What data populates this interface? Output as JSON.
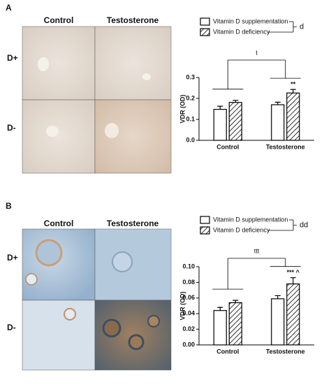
{
  "panels": [
    {
      "label": "A",
      "columns": [
        "Control",
        "Testosterone"
      ],
      "rows": [
        "D+",
        "D-"
      ]
    },
    {
      "label": "B",
      "columns": [
        "Control",
        "Testosterone"
      ],
      "rows": [
        "D+",
        "D-"
      ]
    }
  ],
  "chart_data": [
    {
      "type": "bar",
      "y_label": "VDR (OD)",
      "categories": [
        "Control",
        "Testosterone"
      ],
      "series": [
        {
          "name": "Vitamin D supplementation",
          "color": "#ffffff",
          "hatch": false,
          "values": [
            0.148,
            0.17
          ],
          "errors": [
            0.015,
            0.012
          ]
        },
        {
          "name": "Vitamin D deficiency",
          "color": "#ffffff",
          "hatch": true,
          "values": [
            0.181,
            0.226
          ],
          "errors": [
            0.01,
            0.017
          ]
        }
      ],
      "ylim": [
        0,
        0.3
      ],
      "yticks": [
        {
          "value": 0,
          "label": "0.0"
        },
        0.1,
        0.2,
        0.3
      ],
      "trend_label": "t",
      "factor_label": "d",
      "star_label": "**"
    },
    {
      "type": "bar",
      "y_label": "VDR (OD)",
      "categories": [
        "Control",
        "Testosterone"
      ],
      "series": [
        {
          "name": "Vitamin D supplementation",
          "color": "#ffffff",
          "hatch": false,
          "values": [
            0.044,
            0.059
          ],
          "errors": [
            0.004,
            0.004
          ]
        },
        {
          "name": "Vitamin D deficiency",
          "color": "#ffffff",
          "hatch": true,
          "values": [
            0.054,
            0.078
          ],
          "errors": [
            0.003,
            0.008
          ]
        }
      ],
      "ylim": [
        0,
        0.1
      ],
      "yticks": [
        {
          "value": 0,
          "label": "0.00"
        },
        {
          "value": 0.02,
          "label": "0.02"
        },
        {
          "value": 0.04,
          "label": "0.04"
        },
        {
          "value": 0.06,
          "label": "0.06"
        },
        {
          "value": 0.08,
          "label": "0.08"
        },
        {
          "value": 0.1,
          "label": "0.10"
        }
      ],
      "trend_label": "ttt",
      "factor_label": "dd",
      "star_label": "*** ^"
    }
  ]
}
